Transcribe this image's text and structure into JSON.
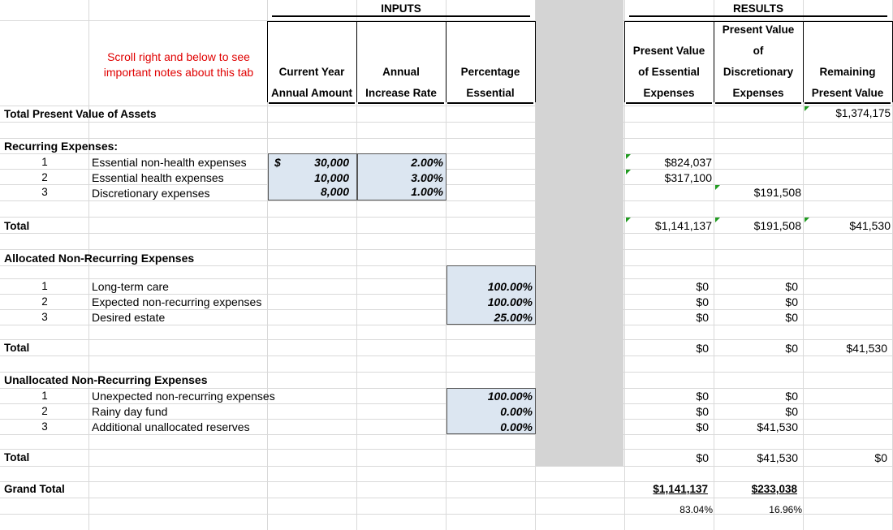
{
  "headers": {
    "inputs": "INPUTS",
    "results": "RESULTS",
    "scroll_note_line1": "Scroll right and below to see",
    "scroll_note_line2": "important notes about this tab",
    "col_current_year_1": "Current Year",
    "col_current_year_2": "Annual Amount",
    "col_annual_1": "Annual",
    "col_annual_2": "Increase Rate",
    "col_pct_1": "Percentage",
    "col_pct_2": "Essential",
    "col_pv_ess_1": "Present Value",
    "col_pv_ess_2": "of Essential",
    "col_pv_ess_3": "Expenses",
    "col_pv_disc_1": "Present Value",
    "col_pv_disc_2": "of",
    "col_pv_disc_3": "Discretionary",
    "col_pv_disc_4": "Expenses",
    "col_rem_1": "Remaining",
    "col_rem_2": "Present Value"
  },
  "assets": {
    "label": "Total Present Value of Assets",
    "value": "$1,374,175"
  },
  "recurring": {
    "title": "Recurring Expenses:",
    "currency_symbol": "$",
    "rows": [
      {
        "num": "1",
        "label": "Essential non-health expenses",
        "amount": "30,000",
        "rate": "2.00%",
        "pv_ess": "$824,037",
        "pv_disc": ""
      },
      {
        "num": "2",
        "label": "Essential health expenses",
        "amount": "10,000",
        "rate": "3.00%",
        "pv_ess": "$317,100",
        "pv_disc": ""
      },
      {
        "num": "3",
        "label": "Discretionary expenses",
        "amount": "8,000",
        "rate": "1.00%",
        "pv_ess": "",
        "pv_disc": "$191,508"
      }
    ],
    "total_label": "Total",
    "total_ess": "$1,141,137",
    "total_disc": "$191,508",
    "total_rem": "$41,530"
  },
  "allocated": {
    "title": "Allocated Non-Recurring Expenses",
    "rows": [
      {
        "num": "1",
        "label": "Long-term care",
        "pct": "100.00%",
        "pv_ess": "$0",
        "pv_disc": "$0"
      },
      {
        "num": "2",
        "label": "Expected non-recurring expenses",
        "pct": "100.00%",
        "pv_ess": "$0",
        "pv_disc": "$0"
      },
      {
        "num": "3",
        "label": "Desired estate",
        "pct": "25.00%",
        "pv_ess": "$0",
        "pv_disc": "$0"
      }
    ],
    "total_label": "Total",
    "total_ess": "$0",
    "total_disc": "$0",
    "total_rem": "$41,530"
  },
  "unallocated": {
    "title": "Unallocated Non-Recurring Expenses",
    "rows": [
      {
        "num": "1",
        "label": "Unexpected non-recurring expenses",
        "pct": "100.00%",
        "pv_ess": "$0",
        "pv_disc": "$0"
      },
      {
        "num": "2",
        "label": "Rainy day fund",
        "pct": "0.00%",
        "pv_ess": "$0",
        "pv_disc": "$0"
      },
      {
        "num": "3",
        "label": "Additional unallocated reserves",
        "pct": "0.00%",
        "pv_ess": "$0",
        "pv_disc": "$41,530"
      }
    ],
    "total_label": "Total",
    "total_ess": "$0",
    "total_disc": "$41,530",
    "total_rem": "$0"
  },
  "grand_total": {
    "label": "Grand Total",
    "ess": "$1,141,137",
    "disc": "$233,038",
    "ess_pct": "83.04%",
    "disc_pct": "16.96%"
  },
  "colors": {
    "input_fill": "#dce6f1",
    "note_red": "#e00000",
    "comment_indicator": "#1f9a1f",
    "divider_gray": "#d4d4d4"
  }
}
